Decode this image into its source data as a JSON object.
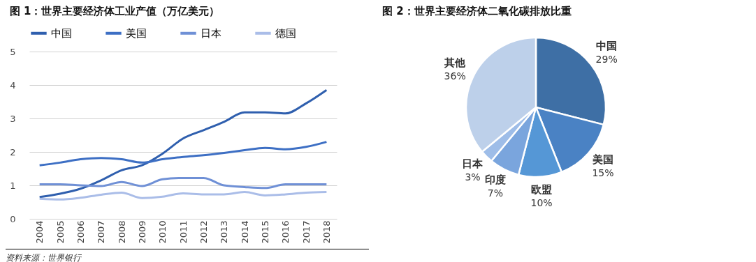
{
  "chart_data": [
    {
      "type": "line",
      "title": "图 1：世界主要经济体工业产值（万亿美元）",
      "categories": [
        "2004",
        "2005",
        "2006",
        "2007",
        "2008",
        "2009",
        "2010",
        "2011",
        "2012",
        "2013",
        "2014",
        "2015",
        "2016",
        "2017",
        "2018"
      ],
      "series": [
        {
          "name": "中国",
          "color": "#2f5fae",
          "values": [
            0.65,
            0.75,
            0.9,
            1.15,
            1.45,
            1.6,
            1.95,
            2.4,
            2.65,
            2.9,
            3.18,
            3.18,
            3.15,
            3.45,
            3.85
          ]
        },
        {
          "name": "美国",
          "color": "#3d6fc4",
          "values": [
            1.6,
            1.68,
            1.78,
            1.82,
            1.78,
            1.68,
            1.78,
            1.85,
            1.9,
            1.97,
            2.05,
            2.12,
            2.08,
            2.15,
            2.3
          ]
        },
        {
          "name": "日本",
          "color": "#6f90d6",
          "values": [
            1.03,
            1.03,
            1.0,
            0.98,
            1.1,
            0.98,
            1.18,
            1.22,
            1.22,
            1.0,
            0.95,
            0.92,
            1.03,
            1.03,
            1.03
          ]
        },
        {
          "name": "德国",
          "color": "#aabde8",
          "values": [
            0.6,
            0.58,
            0.63,
            0.72,
            0.78,
            0.62,
            0.66,
            0.76,
            0.73,
            0.73,
            0.8,
            0.7,
            0.73,
            0.78,
            0.8
          ]
        }
      ],
      "ylim": [
        0,
        5
      ],
      "yticks": [
        0,
        1,
        2,
        3,
        4,
        5
      ],
      "grid": "y",
      "legend": "top",
      "annotations": [
        "资料来源：世界银行"
      ]
    },
    {
      "type": "pie",
      "title": "图 2：世界主要经济体二氧化碳排放比重",
      "categories": [
        "中国",
        "美国",
        "欧盟",
        "印度",
        "日本",
        "其他"
      ],
      "values": [
        29,
        15,
        10,
        7,
        3,
        36
      ],
      "colors": [
        "#3e6fa5",
        "#4a82c4",
        "#5597d6",
        "#7aa5dd",
        "#9ebde8",
        "#bdd0ea"
      ],
      "value_labels": [
        "29%",
        "15%",
        "10%",
        "7%",
        "3%",
        "36%"
      ]
    }
  ]
}
